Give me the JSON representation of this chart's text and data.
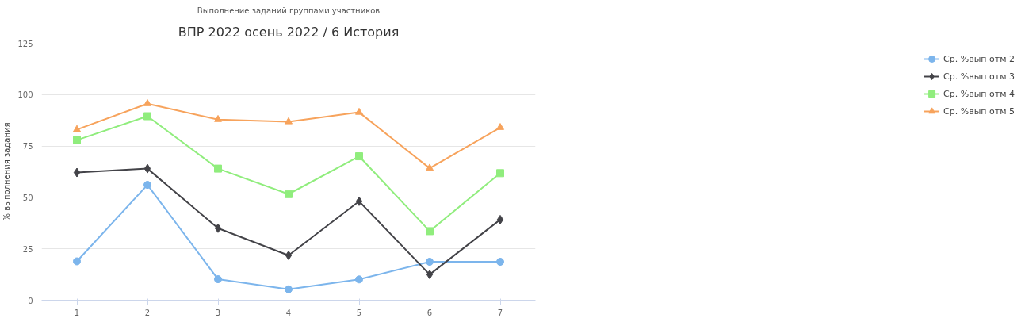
{
  "chart_data": {
    "type": "line",
    "title": "ВПР 2022 осень 2022 / 6 История",
    "subtitle": "Выполнение заданий группами участников",
    "ylabel": "% выполнения задания",
    "categories": [
      "1",
      "2",
      "3",
      "4",
      "5",
      "6",
      "7"
    ],
    "series": [
      {
        "name": "Ср. %вып отм 2",
        "color": "#7cb5ec",
        "marker": "circle",
        "values": [
          18.9,
          56.1,
          10.2,
          5.3,
          10.1,
          18.7,
          18.7
        ]
      },
      {
        "name": "Ср. %вып отм 3",
        "color": "#434348",
        "marker": "diamond",
        "values": [
          62.1,
          64,
          35,
          21.8,
          48.1,
          12.5,
          39.2
        ]
      },
      {
        "name": "Ср. %вып отм 4",
        "color": "#90ed7d",
        "marker": "square",
        "values": [
          77.9,
          89.5,
          64,
          51.6,
          70,
          33.6,
          61.8
        ]
      },
      {
        "name": "Ср. %вып отм 5",
        "color": "#f7a35c",
        "marker": "triangle",
        "values": [
          83,
          95.6,
          87.9,
          86.8,
          91.4,
          64.2,
          84
        ]
      }
    ],
    "ylim": [
      0,
      125
    ],
    "yticks": [
      0,
      25,
      50,
      75,
      100,
      125
    ],
    "grid": "y",
    "legend": "right"
  }
}
